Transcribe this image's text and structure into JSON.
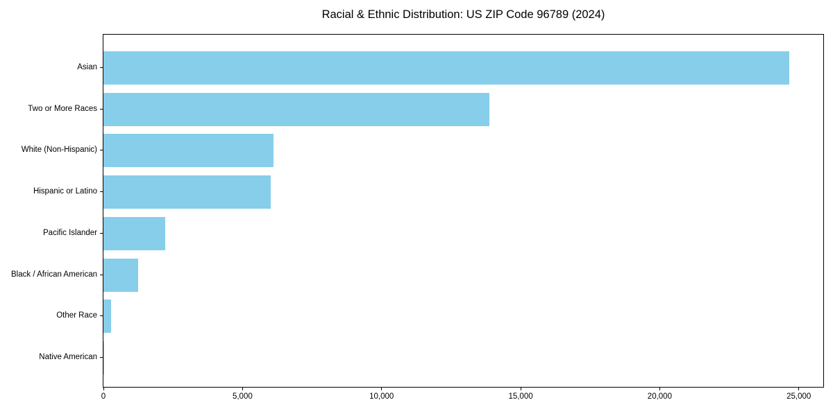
{
  "title": "Racial & Ethnic Distribution: US ZIP Code 96789 (2024)",
  "chart_data": {
    "type": "bar",
    "orientation": "horizontal",
    "title": "Racial & Ethnic Distribution: US ZIP Code 96789 (2024)",
    "categories": [
      "Asian",
      "Two or More Races",
      "White (Non-Hispanic)",
      "Hispanic or Latino",
      "Pacific Islander",
      "Black / African American",
      "Other Race",
      "Native American"
    ],
    "values": [
      24650,
      13880,
      6110,
      6010,
      2220,
      1250,
      275,
      30
    ],
    "xlabel": "",
    "ylabel": "",
    "xlim": [
      0,
      25880
    ],
    "x_ticks": [
      {
        "value": 0,
        "label": "0"
      },
      {
        "value": 5000,
        "label": "5,000"
      },
      {
        "value": 10000,
        "label": "10,000"
      },
      {
        "value": 15000,
        "label": "15,000"
      },
      {
        "value": 20000,
        "label": "20,000"
      },
      {
        "value": 25000,
        "label": "25,000"
      }
    ],
    "bar_color": "#87CEEB",
    "grid": false,
    "legend": "none"
  }
}
